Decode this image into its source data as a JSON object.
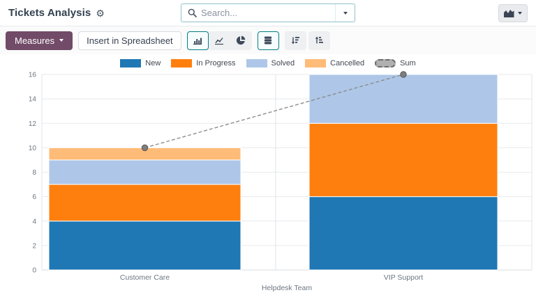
{
  "header": {
    "title": "Tickets Analysis",
    "gear_icon": "gear-icon",
    "search": {
      "placeholder": "Search...",
      "icon": "search-icon",
      "toggle_icon": "chevron-down-icon"
    },
    "view_switcher": {
      "icon": "area-chart-icon",
      "caret_icon": "chevron-down-icon"
    }
  },
  "toolbar": {
    "measures_label": "Measures",
    "insert_spreadsheet_label": "Insert in Spreadsheet",
    "chart_type_buttons": [
      {
        "name": "bar-chart",
        "icon": "bar-chart-icon",
        "active": true
      },
      {
        "name": "line-chart",
        "icon": "line-chart-icon",
        "active": false
      },
      {
        "name": "pie-chart",
        "icon": "pie-chart-icon",
        "active": false
      }
    ],
    "stacked_button": {
      "name": "stacked",
      "icon": "database-icon",
      "active": true
    },
    "sort_buttons": [
      {
        "name": "sort-descending",
        "icon": "sort-amount-desc-icon"
      },
      {
        "name": "sort-ascending",
        "icon": "sort-amount-asc-icon"
      }
    ],
    "accent_color": "#714B67",
    "active_border_color": "#017e84"
  },
  "chart_data": {
    "type": "bar",
    "stacked": true,
    "title": "",
    "xlabel": "Helpdesk Team",
    "ylabel": "",
    "categories": [
      "Customer Care",
      "VIP Support"
    ],
    "series": [
      {
        "name": "New",
        "color": "#1f77b4",
        "values": [
          4,
          6
        ]
      },
      {
        "name": "In Progress",
        "color": "#ff7f0e",
        "values": [
          3,
          6
        ]
      },
      {
        "name": "Solved",
        "color": "#aec7e8",
        "values": [
          2,
          4
        ]
      },
      {
        "name": "Cancelled",
        "color": "#ffbb78",
        "values": [
          1,
          0
        ]
      }
    ],
    "line_overlay": {
      "name": "Sum",
      "color": "#8c8c8c",
      "marker_color": "#7f7f7f",
      "marker_border": "#555555",
      "style": "dashed",
      "values": [
        10,
        16
      ]
    },
    "ylim": [
      0,
      16
    ],
    "ytick_step": 2,
    "grid": true,
    "legend_position": "top"
  }
}
